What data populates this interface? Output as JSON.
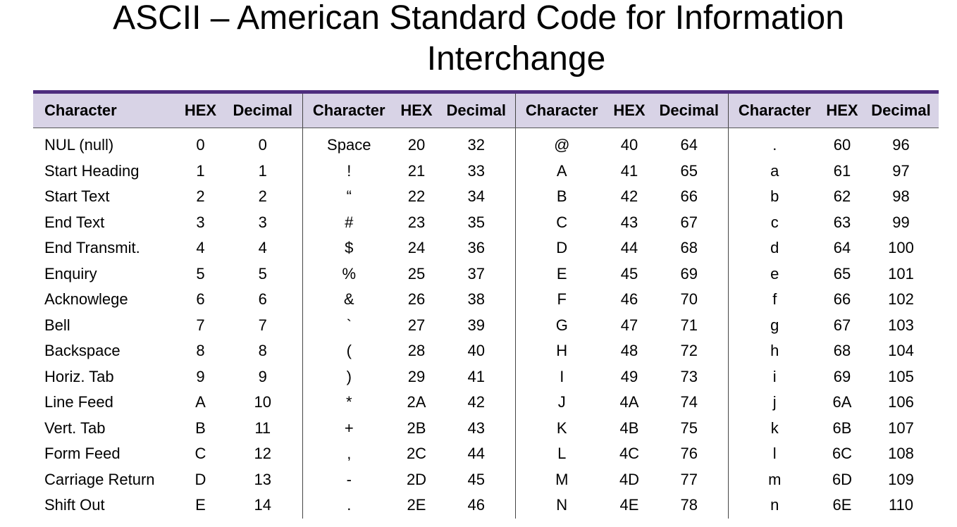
{
  "title": {
    "line1": "ASCII – American Standard Code for Information",
    "line2": "Interchange"
  },
  "columns": {
    "character": "Character",
    "hex": "HEX",
    "decimal": "Decimal"
  },
  "rows": [
    [
      "NUL (null)",
      "0",
      "0",
      "Space",
      "20",
      "32",
      "@",
      "40",
      "64",
      ".",
      "60",
      "96"
    ],
    [
      "Start Heading",
      "1",
      "1",
      "!",
      "21",
      "33",
      "A",
      "41",
      "65",
      "a",
      "61",
      "97"
    ],
    [
      "Start Text",
      "2",
      "2",
      "“",
      "22",
      "34",
      "B",
      "42",
      "66",
      "b",
      "62",
      "98"
    ],
    [
      "End Text",
      "3",
      "3",
      "#",
      "23",
      "35",
      "C",
      "43",
      "67",
      "c",
      "63",
      "99"
    ],
    [
      "End Transmit.",
      "4",
      "4",
      "$",
      "24",
      "36",
      "D",
      "44",
      "68",
      "d",
      "64",
      "100"
    ],
    [
      "Enquiry",
      "5",
      "5",
      "%",
      "25",
      "37",
      "E",
      "45",
      "69",
      "e",
      "65",
      "101"
    ],
    [
      "Acknowlege",
      "6",
      "6",
      "&",
      "26",
      "38",
      "F",
      "46",
      "70",
      "f",
      "66",
      "102"
    ],
    [
      "Bell",
      "7",
      "7",
      "`",
      "27",
      "39",
      "G",
      "47",
      "71",
      "g",
      "67",
      "103"
    ],
    [
      "Backspace",
      "8",
      "8",
      "(",
      "28",
      "40",
      "H",
      "48",
      "72",
      "h",
      "68",
      "104"
    ],
    [
      "Horiz. Tab",
      "9",
      "9",
      ")",
      "29",
      "41",
      "I",
      "49",
      "73",
      "i",
      "69",
      "105"
    ],
    [
      "Line Feed",
      "A",
      "10",
      "*",
      "2A",
      "42",
      "J",
      "4A",
      "74",
      "j",
      "6A",
      "106"
    ],
    [
      "Vert. Tab",
      "B",
      "11",
      "+",
      "2B",
      "43",
      "K",
      "4B",
      "75",
      "k",
      "6B",
      "107"
    ],
    [
      "Form Feed",
      "C",
      "12",
      ",",
      "2C",
      "44",
      "L",
      "4C",
      "76",
      "l",
      "6C",
      "108"
    ],
    [
      "Carriage Return",
      "D",
      "13",
      "-",
      "2D",
      "45",
      "M",
      "4D",
      "77",
      "m",
      "6D",
      "109"
    ],
    [
      "Shift Out",
      "E",
      "14",
      ".",
      "2E",
      "46",
      "N",
      "4E",
      "78",
      "n",
      "6E",
      "110"
    ]
  ],
  "colors": {
    "header_bg": "#d8d3e6",
    "header_rule": "#4d2c7d"
  }
}
